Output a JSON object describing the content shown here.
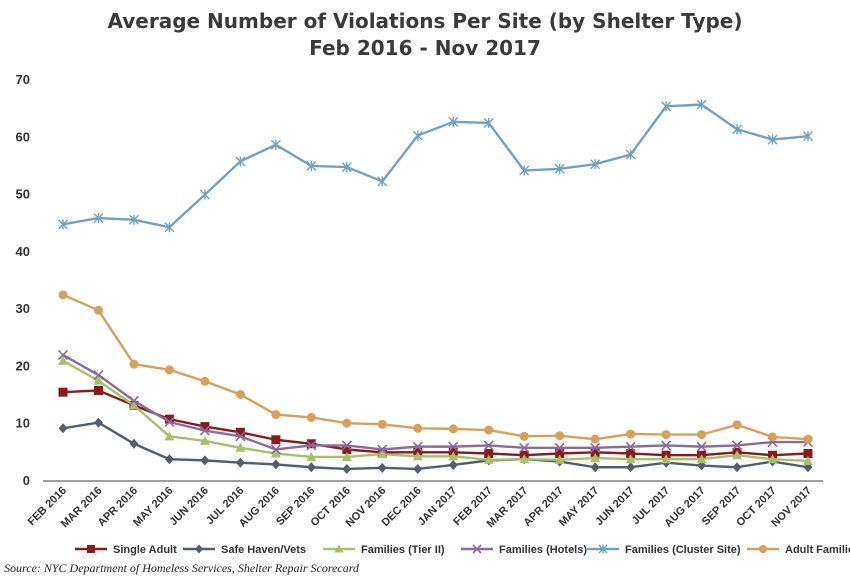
{
  "chart_data": {
    "type": "line",
    "title": "Average Number of Violations Per Site (by Shelter Type)",
    "subtitle": "Feb 2016 - Nov 2017",
    "xlabel": "",
    "ylabel": "",
    "ylim": [
      0,
      70
    ],
    "yticks": [
      0,
      10,
      20,
      30,
      40,
      50,
      60,
      70
    ],
    "grid": false,
    "legend_position": "bottom",
    "categories": [
      "FEB 2016",
      "MAR 2016",
      "APR 2016",
      "MAY 2016",
      "JUN 2016",
      "JUL 2016",
      "AUG 2016",
      "SEP 2016",
      "OCT 2016",
      "NOV 2016",
      "DEC 2016",
      "JAN 2017",
      "FEB 2017",
      "MAR 2017",
      "APR 2017",
      "MAY 2017",
      "JUN 2017",
      "JUL 2017",
      "AUG 2017",
      "SEP 2017",
      "OCT 2017",
      "NOV 2017"
    ],
    "series": [
      {
        "name": "Single Adult",
        "color": "#8b1a1a",
        "marker": "square",
        "values": [
          15.5,
          15.8,
          13.2,
          10.8,
          9.5,
          8.5,
          7.2,
          6.5,
          5.5,
          5.0,
          5.0,
          5.0,
          4.8,
          4.5,
          4.8,
          5.0,
          4.8,
          4.5,
          4.5,
          5.0,
          4.5,
          4.8
        ]
      },
      {
        "name": "Safe Haven/Vets",
        "color": "#4f5f6f",
        "marker": "diamond",
        "values": [
          9.2,
          10.2,
          6.5,
          3.8,
          3.6,
          3.2,
          2.9,
          2.4,
          2.1,
          2.3,
          2.1,
          2.8,
          3.6,
          3.8,
          3.4,
          2.4,
          2.4,
          3.2,
          2.7,
          2.4,
          3.4,
          2.4
        ]
      },
      {
        "name": "Families (Tier II)",
        "color": "#a9c06a",
        "marker": "triangle",
        "values": [
          21.0,
          17.5,
          13.2,
          7.8,
          7.0,
          5.8,
          4.8,
          4.2,
          4.2,
          4.7,
          4.3,
          4.3,
          3.7,
          3.8,
          3.7,
          4.0,
          3.8,
          3.8,
          3.8,
          4.5,
          3.8,
          3.5
        ]
      },
      {
        "name": "Families (Hotels)",
        "color": "#8a6b9e",
        "marker": "x",
        "values": [
          22.0,
          18.5,
          14.0,
          10.3,
          8.8,
          7.8,
          5.5,
          6.2,
          6.2,
          5.5,
          6.0,
          6.0,
          6.2,
          5.8,
          5.8,
          5.8,
          6.0,
          6.2,
          6.0,
          6.2,
          6.8,
          6.8
        ]
      },
      {
        "name": "Families (Cluster Site)",
        "color": "#6fa3c0",
        "marker": "star",
        "values": [
          44.8,
          45.9,
          45.6,
          44.3,
          50.0,
          55.8,
          58.7,
          55.0,
          54.8,
          52.3,
          60.3,
          62.7,
          62.5,
          54.2,
          54.5,
          55.3,
          57.0,
          65.4,
          65.7,
          61.4,
          59.6,
          60.2
        ]
      },
      {
        "name": "Adult Families",
        "color": "#d9a05b",
        "marker": "circle",
        "values": [
          32.5,
          29.8,
          20.4,
          19.4,
          17.4,
          15.1,
          11.6,
          11.1,
          10.1,
          9.9,
          9.2,
          9.1,
          8.9,
          7.8,
          7.9,
          7.3,
          8.2,
          8.1,
          8.1,
          9.8,
          7.7,
          7.3
        ]
      }
    ]
  },
  "source": "Source:  NYC Department of Homeless Services, Shelter Repair Scorecard"
}
